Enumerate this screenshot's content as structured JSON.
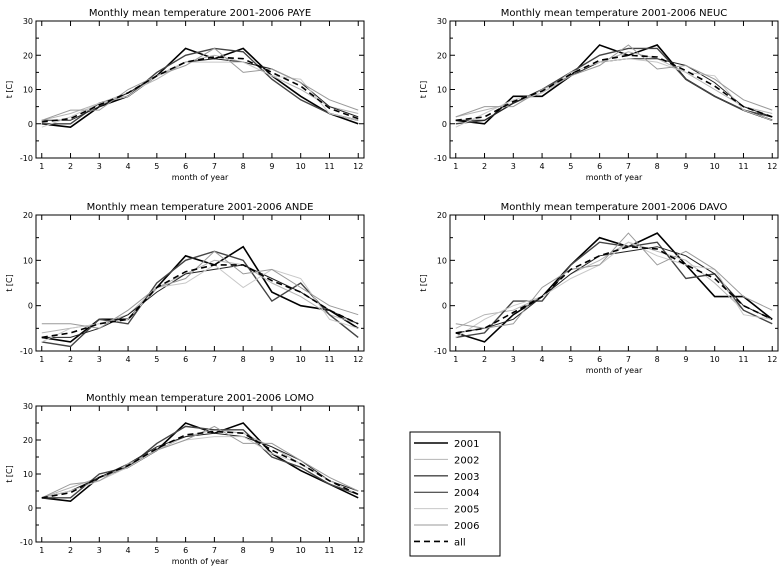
{
  "chart_data": [
    {
      "type": "line",
      "title": "Monthly mean temperature 2001-2006  PAYE",
      "xlabel": "month of year",
      "ylabel": "t [C]",
      "xlim": [
        0.8,
        12.2
      ],
      "ylim": [
        -10,
        30
      ],
      "x": [
        1,
        2,
        3,
        4,
        5,
        6,
        7,
        8,
        9,
        10,
        11,
        12
      ],
      "xticks": [
        "1",
        "2",
        "3",
        "4",
        "5",
        "6",
        "7",
        "8",
        "9",
        "10",
        "11",
        "12"
      ],
      "yticks": [
        "-10",
        "0",
        "10",
        "20",
        "30"
      ],
      "series": [
        {
          "name": "2001",
          "values": [
            0,
            -1,
            5,
            8,
            14,
            22,
            19,
            22,
            14,
            8,
            3,
            0
          ]
        },
        {
          "name": "2002",
          "values": [
            1,
            3,
            6,
            9,
            13,
            18,
            20,
            18,
            14,
            10,
            5,
            3
          ]
        },
        {
          "name": "2003",
          "values": [
            0,
            0,
            6,
            8,
            15,
            20,
            22,
            21,
            13,
            7,
            3,
            1
          ]
        },
        {
          "name": "2004",
          "values": [
            1,
            1,
            5,
            9,
            14,
            18,
            19,
            18,
            16,
            12,
            5,
            2
          ]
        },
        {
          "name": "2005",
          "values": [
            -1,
            2,
            6,
            8,
            14,
            18,
            18,
            18,
            14,
            13,
            3,
            1
          ]
        },
        {
          "name": "2006",
          "values": [
            1,
            4,
            4,
            10,
            14,
            17,
            22,
            15,
            16,
            12,
            7,
            4
          ]
        },
        {
          "name": "all",
          "values": [
            0.5,
            1.5,
            5.5,
            9,
            14,
            18,
            19.5,
            19,
            15,
            11,
            4.5,
            1.5
          ]
        }
      ]
    },
    {
      "type": "line",
      "title": "Monthly mean temperature 2001-2006  NEUC",
      "xlabel": "month of year",
      "ylabel": "t [C]",
      "xlim": [
        0.8,
        12.2
      ],
      "ylim": [
        -10,
        30
      ],
      "x": [
        1,
        2,
        3,
        4,
        5,
        6,
        7,
        8,
        9,
        10,
        11,
        12
      ],
      "xticks": [
        "1",
        "2",
        "3",
        "4",
        "5",
        "6",
        "7",
        "8",
        "9",
        "10",
        "11",
        "12"
      ],
      "yticks": [
        "-10",
        "0",
        "10",
        "20",
        "30"
      ],
      "series": [
        {
          "name": "2001",
          "values": [
            1,
            0,
            8,
            8,
            14,
            23,
            20,
            23,
            13,
            8,
            4,
            1
          ]
        },
        {
          "name": "2002",
          "values": [
            2,
            4,
            6,
            9,
            14,
            18,
            21,
            19,
            15,
            10,
            5,
            3
          ]
        },
        {
          "name": "2003",
          "values": [
            0,
            1,
            6,
            10,
            15,
            20,
            22,
            22,
            13,
            8,
            4,
            2
          ]
        },
        {
          "name": "2004",
          "values": [
            1,
            1,
            6,
            10,
            14,
            18,
            19,
            19,
            17,
            12,
            5,
            2
          ]
        },
        {
          "name": "2005",
          "values": [
            -1,
            3,
            7,
            9,
            15,
            18,
            19,
            18,
            15,
            14,
            4,
            1
          ]
        },
        {
          "name": "2006",
          "values": [
            2,
            5,
            5,
            10,
            14,
            17,
            23,
            16,
            17,
            13,
            7,
            4
          ]
        },
        {
          "name": "all",
          "values": [
            1,
            2,
            6.5,
            9.5,
            14.5,
            18.5,
            20,
            19.5,
            15.5,
            11,
            5,
            2
          ]
        }
      ]
    },
    {
      "type": "line",
      "title": "Monthly mean temperature 2001-2006  ANDE",
      "xlabel": "",
      "ylabel": "t [C]",
      "xlim": [
        0.8,
        12.2
      ],
      "ylim": [
        -10,
        20
      ],
      "x": [
        1,
        2,
        3,
        4,
        5,
        6,
        7,
        8,
        9,
        10,
        11,
        12
      ],
      "xticks": [
        "1",
        "2",
        "3",
        "4",
        "5",
        "6",
        "7",
        "8",
        "9",
        "10",
        "11",
        "12"
      ],
      "yticks": [
        "-10",
        "0",
        "10",
        "20"
      ],
      "series": [
        {
          "name": "2001",
          "values": [
            -7,
            -8,
            -3,
            -3,
            4,
            11,
            9,
            13,
            3,
            0,
            -1,
            -5
          ]
        },
        {
          "name": "2002",
          "values": [
            -6,
            -5,
            -4,
            -2,
            4,
            7,
            10,
            9,
            5,
            2,
            -2,
            -4
          ]
        },
        {
          "name": "2003",
          "values": [
            -8,
            -9,
            -3,
            -4,
            5,
            10,
            12,
            10,
            1,
            5,
            -2,
            -7
          ]
        },
        {
          "name": "2004",
          "values": [
            -7,
            -7,
            -5,
            -2,
            3,
            7,
            8,
            9,
            6,
            3,
            -1,
            -4
          ]
        },
        {
          "name": "2005",
          "values": [
            -8,
            -5,
            -4,
            -3,
            4,
            5,
            9,
            4,
            8,
            6,
            -3,
            -5
          ]
        },
        {
          "name": "2006",
          "values": [
            -4,
            -4,
            -5,
            -1,
            4,
            6,
            12,
            7,
            8,
            4,
            0,
            -2
          ]
        },
        {
          "name": "all",
          "values": [
            -7,
            -6,
            -4,
            -3,
            4,
            7.5,
            9,
            9,
            5.5,
            3,
            -1,
            -4
          ]
        }
      ]
    },
    {
      "type": "line",
      "title": "Monthly mean temperature 2001-2006  DAVO",
      "xlabel": "month of year",
      "ylabel": "t [C]",
      "xlim": [
        0.8,
        12.2
      ],
      "ylim": [
        -10,
        20
      ],
      "x": [
        1,
        2,
        3,
        4,
        5,
        6,
        7,
        8,
        9,
        10,
        11,
        12
      ],
      "xticks": [
        "1",
        "2",
        "3",
        "4",
        "5",
        "6",
        "7",
        "8",
        "9",
        "10",
        "11",
        "12"
      ],
      "yticks": [
        "-10",
        "0",
        "10",
        "20"
      ],
      "series": [
        {
          "name": "2001",
          "values": [
            -6,
            -8,
            -2,
            2,
            9,
            15,
            13,
            16,
            9,
            2,
            2,
            -3
          ]
        },
        {
          "name": "2002",
          "values": [
            -5,
            -2,
            -1,
            2,
            7,
            10,
            14,
            12,
            10,
            5,
            -1,
            -4
          ]
        },
        {
          "name": "2003",
          "values": [
            -7,
            -6,
            1,
            1,
            9,
            14,
            13,
            14,
            6,
            7,
            -1,
            -4
          ]
        },
        {
          "name": "2004",
          "values": [
            -6,
            -5,
            -3,
            2,
            7,
            11,
            12,
            13,
            11,
            7,
            0,
            -3
          ]
        },
        {
          "name": "2005",
          "values": [
            -7,
            -3,
            0,
            2,
            6,
            9,
            14,
            11,
            9,
            8,
            -2,
            -3
          ]
        },
        {
          "name": "2006",
          "values": [
            -4,
            -5,
            -4,
            4,
            8,
            9,
            16,
            9,
            12,
            8,
            2,
            -1
          ]
        },
        {
          "name": "all",
          "values": [
            -6,
            -5,
            -1.5,
            2,
            8,
            11,
            13,
            12.5,
            9,
            6,
            0,
            -3
          ]
        }
      ]
    },
    {
      "type": "line",
      "title": "Monthly mean temperature 2001-2006  LOMO",
      "xlabel": "month of year",
      "ylabel": "t [C]",
      "xlim": [
        0.8,
        12.2
      ],
      "ylim": [
        -10,
        30
      ],
      "x": [
        1,
        2,
        3,
        4,
        5,
        6,
        7,
        8,
        9,
        10,
        11,
        12
      ],
      "xticks": [
        "1",
        "2",
        "3",
        "4",
        "5",
        "6",
        "7",
        "8",
        "9",
        "10",
        "11",
        "12"
      ],
      "yticks": [
        "-10",
        "0",
        "10",
        "20",
        "30"
      ],
      "series": [
        {
          "name": "2001",
          "values": [
            3,
            2,
            9,
            12,
            17,
            25,
            22,
            25,
            16,
            11,
            7,
            3
          ]
        },
        {
          "name": "2002",
          "values": [
            3,
            6,
            9,
            12,
            17,
            21,
            23,
            22,
            18,
            13,
            8,
            4
          ]
        },
        {
          "name": "2003",
          "values": [
            3,
            3,
            10,
            12,
            19,
            24,
            23,
            23,
            15,
            12,
            7,
            4
          ]
        },
        {
          "name": "2004",
          "values": [
            3,
            5,
            9,
            13,
            18,
            21,
            22,
            21,
            18,
            14,
            8,
            5
          ]
        },
        {
          "name": "2005",
          "values": [
            3,
            5,
            8,
            12,
            17,
            20,
            21,
            21,
            16,
            13,
            8,
            4
          ]
        },
        {
          "name": "2006",
          "values": [
            3,
            7,
            8,
            13,
            17,
            20,
            24,
            19,
            19,
            14,
            9,
            5
          ]
        },
        {
          "name": "all",
          "values": [
            3,
            4.5,
            9,
            12.5,
            17.5,
            21.5,
            22.5,
            22,
            17,
            13,
            8,
            4
          ]
        }
      ]
    }
  ],
  "legend": {
    "entries": [
      {
        "label": "2001",
        "color": "#000000",
        "width": 1.6,
        "dash": ""
      },
      {
        "label": "2002",
        "color": "#b4b4b4",
        "width": 1.0,
        "dash": ""
      },
      {
        "label": "2003",
        "color": "#444444",
        "width": 1.4,
        "dash": ""
      },
      {
        "label": "2004",
        "color": "#222222",
        "width": 1.0,
        "dash": ""
      },
      {
        "label": "2005",
        "color": "#c8c8c8",
        "width": 1.0,
        "dash": ""
      },
      {
        "label": "2006",
        "color": "#9a9a9a",
        "width": 1.0,
        "dash": ""
      },
      {
        "label": "all",
        "color": "#000000",
        "width": 1.6,
        "dash": "6,4"
      }
    ]
  }
}
